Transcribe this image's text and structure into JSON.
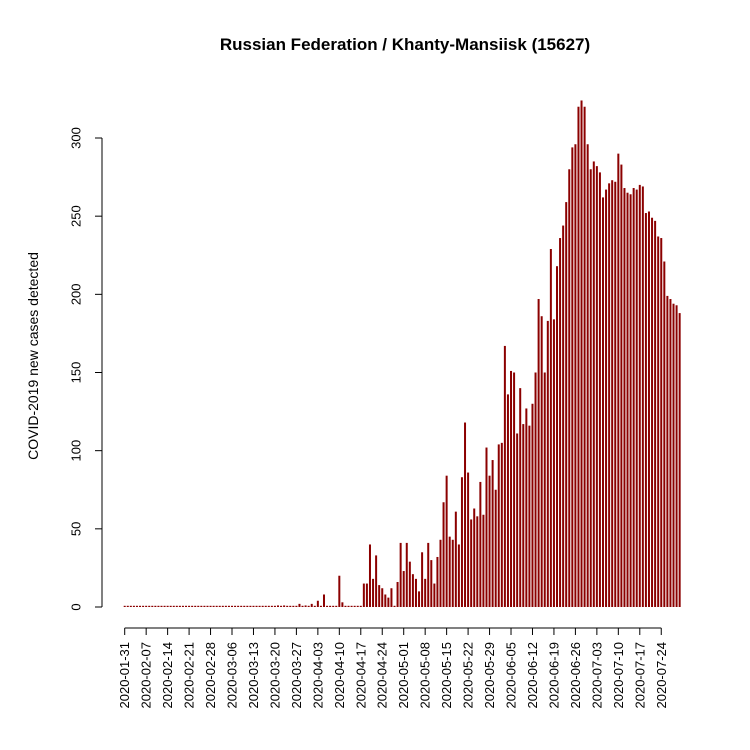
{
  "chart_data": {
    "type": "bar",
    "title": "Russian Federation / Khanty-Mansiisk (15627)",
    "xlabel": "",
    "ylabel": "COVID-2019 new cases detected",
    "start_date": "2020-01-31",
    "ylim": [
      0,
      325
    ],
    "yticks": [
      0,
      50,
      100,
      150,
      200,
      250,
      300
    ],
    "xtick_labels": [
      "2020-01-31",
      "2020-02-07",
      "2020-02-14",
      "2020-02-21",
      "2020-02-28",
      "2020-03-06",
      "2020-03-13",
      "2020-03-20",
      "2020-03-27",
      "2020-04-03",
      "2020-04-10",
      "2020-04-17",
      "2020-04-24",
      "2020-05-01",
      "2020-05-08",
      "2020-05-15",
      "2020-05-22",
      "2020-05-29",
      "2020-06-05",
      "2020-06-12",
      "2020-06-19",
      "2020-06-26",
      "2020-07-03",
      "2020-07-10",
      "2020-07-17",
      "2020-07-24"
    ],
    "grid": false,
    "values": [
      0,
      0,
      0,
      0,
      0,
      0,
      0,
      0,
      0,
      0,
      0,
      0,
      0,
      0,
      0,
      0,
      0,
      0,
      0,
      0,
      0,
      0,
      0,
      0,
      0,
      0,
      0,
      0,
      0,
      0,
      0,
      0,
      0,
      0,
      0,
      0,
      0,
      0,
      0,
      0,
      0,
      0,
      0,
      0,
      0,
      0,
      0,
      0,
      0,
      0,
      1,
      0,
      1,
      0,
      0,
      0,
      0,
      2,
      0,
      1,
      0,
      2,
      0,
      4,
      0,
      8,
      0,
      0,
      0,
      0,
      20,
      3,
      0,
      0,
      0,
      0,
      0,
      0,
      15,
      15,
      40,
      18,
      33,
      14,
      12,
      8,
      6,
      12,
      0,
      16,
      41,
      23,
      41,
      29,
      21,
      18,
      10,
      35,
      18,
      41,
      30,
      15,
      32,
      43,
      67,
      84,
      45,
      43,
      61,
      40,
      83,
      118,
      86,
      56,
      63,
      58,
      80,
      59,
      102,
      84,
      94,
      75,
      104,
      105,
      167,
      136,
      151,
      150,
      111,
      140,
      117,
      127,
      116,
      130,
      150,
      197,
      186,
      150,
      183,
      229,
      184,
      218,
      236,
      244,
      259,
      280,
      294,
      296,
      320,
      324,
      320,
      296,
      280,
      285,
      282,
      278,
      262,
      267,
      271,
      273,
      272,
      290,
      283,
      268,
      265,
      264,
      268,
      267,
      270,
      269,
      252,
      253,
      249,
      247,
      237,
      236,
      221,
      199,
      197,
      194,
      193,
      188
    ]
  }
}
